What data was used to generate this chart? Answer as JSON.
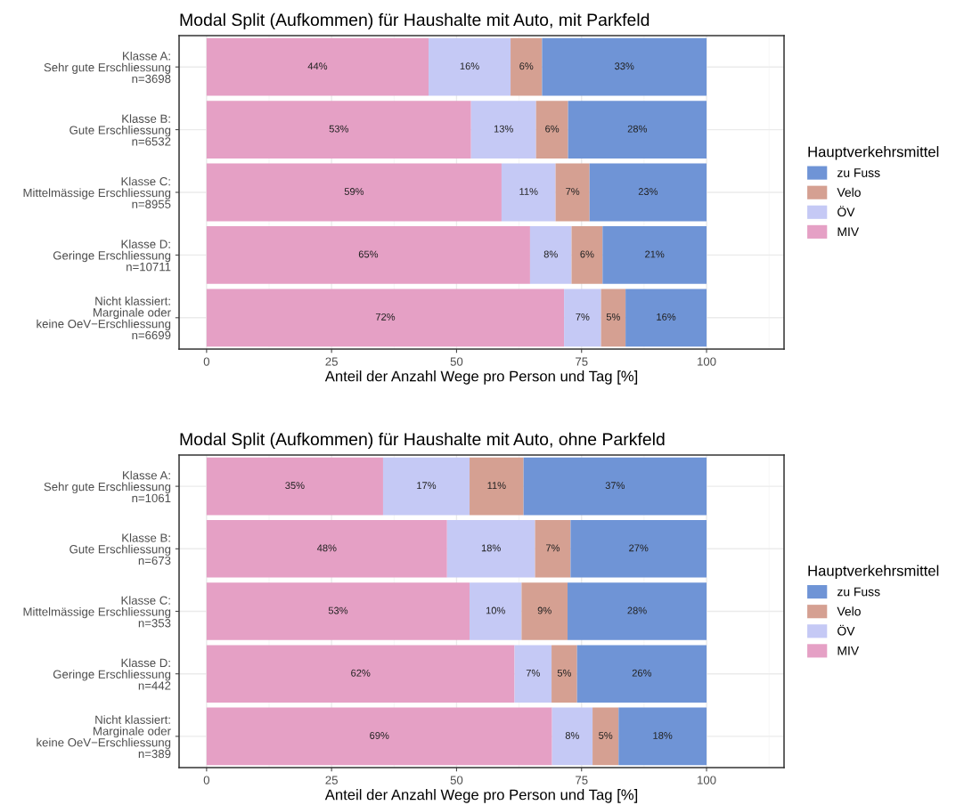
{
  "chart_data": [
    {
      "type": "bar",
      "orientation": "horizontal",
      "stacked": true,
      "title": "Modal Split (Aufkommen) für Haushalte mit Auto, mit Parkfeld",
      "xlabel": "Anteil der Anzahl Wege pro Person und Tag [%]",
      "legend_title": "Hauptverkehrsmittel",
      "legend": "right",
      "grid": true,
      "xlim": [
        -5.5,
        115.5
      ],
      "xticks": [
        0,
        25,
        50,
        75,
        100
      ],
      "categories": [
        "Klasse A:\nSehr gute Erschliessung\nn=3698",
        "Klasse B:\nGute Erschliessung\nn=6532",
        "Klasse C:\nMittelmässige Erschliessung\nn=8955",
        "Klasse D:\nGeringe Erschliessung\nn=10711",
        "Nicht klassiert:\nMarginale oder\nkeine OeV−Erschliessung\nn=6699"
      ],
      "series": [
        {
          "name": "MIV",
          "color": "#e5a0c5",
          "values": [
            44.4,
            52.9,
            59.0,
            64.7,
            71.5
          ],
          "value_labels": [
            "44%",
            "53%",
            "59%",
            "65%",
            "72%"
          ]
        },
        {
          "name": "ÖV",
          "color": "#c5c9f5",
          "values": [
            16.4,
            13.0,
            10.8,
            8.3,
            7.4
          ],
          "value_labels": [
            "16%",
            "13%",
            "11%",
            "8%",
            "7%"
          ]
        },
        {
          "name": "Velo",
          "color": "#d5a092",
          "values": [
            6.3,
            6.4,
            6.8,
            6.2,
            4.9
          ],
          "value_labels": [
            "6%",
            "6%",
            "7%",
            "6%",
            "5%"
          ]
        },
        {
          "name": "zu Fuss",
          "color": "#6f94d6",
          "values": [
            32.9,
            27.7,
            23.4,
            20.8,
            16.2
          ],
          "value_labels": [
            "33%",
            "28%",
            "23%",
            "21%",
            "16%"
          ]
        }
      ]
    },
    {
      "type": "bar",
      "orientation": "horizontal",
      "stacked": true,
      "title": "Modal Split (Aufkommen) für Haushalte mit Auto, ohne Parkfeld",
      "xlabel": "Anteil der Anzahl Wege pro Person und Tag [%]",
      "legend_title": "Hauptverkehrsmittel",
      "legend": "right",
      "grid": true,
      "xlim": [
        -5.5,
        115.5
      ],
      "xticks": [
        0,
        25,
        50,
        75,
        100
      ],
      "categories": [
        "Klasse A:\nSehr gute Erschliessung\nn=1061",
        "Klasse B:\nGute Erschliessung\nn=673",
        "Klasse C:\nMittelmässige Erschliessung\nn=353",
        "Klasse D:\nGeringe Erschliessung\nn=442",
        "Nicht klassiert:\nMarginale oder\nkeine OeV−Erschliessung\nn=389"
      ],
      "series": [
        {
          "name": "MIV",
          "color": "#e5a0c5",
          "values": [
            35.3,
            48.1,
            52.6,
            61.6,
            69.1
          ],
          "value_labels": [
            "35%",
            "48%",
            "53%",
            "62%",
            "69%"
          ]
        },
        {
          "name": "ÖV",
          "color": "#c5c9f5",
          "values": [
            17.3,
            17.6,
            10.4,
            7.4,
            8.1
          ],
          "value_labels": [
            "17%",
            "18%",
            "10%",
            "7%",
            "8%"
          ]
        },
        {
          "name": "Velo",
          "color": "#d5a092",
          "values": [
            10.8,
            7.1,
            9.2,
            5.1,
            5.2
          ],
          "value_labels": [
            "11%",
            "7%",
            "9%",
            "5%",
            "5%"
          ]
        },
        {
          "name": "zu Fuss",
          "color": "#6f94d6",
          "values": [
            36.6,
            27.2,
            27.8,
            25.9,
            17.6
          ],
          "value_labels": [
            "37%",
            "27%",
            "28%",
            "26%",
            "18%"
          ]
        }
      ]
    }
  ]
}
